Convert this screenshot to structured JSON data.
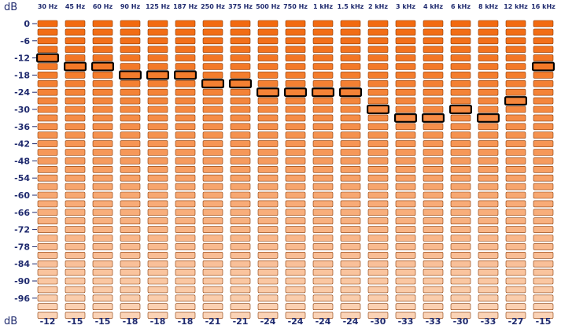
{
  "analyzer": {
    "top_unit": "dB",
    "bottom_unit": "dB"
  },
  "chart_data": {
    "type": "bar",
    "categories": [
      "30 Hz",
      "45 Hz",
      "60 Hz",
      "90 Hz",
      "125 Hz",
      "187 Hz",
      "250 Hz",
      "375 Hz",
      "500 Hz",
      "750 Hz",
      "1 kHz",
      "1.5 kHz",
      "2 kHz",
      "3 kHz",
      "4 kHz",
      "6 kHz",
      "8 kHz",
      "12 kHz",
      "16 kHz"
    ],
    "peak_values": [
      -12,
      -15,
      -15,
      -18,
      -18,
      -18,
      -21,
      -21,
      -24,
      -24,
      -24,
      -24,
      -30,
      -33,
      -33,
      -30,
      -33,
      -27,
      -15
    ],
    "peak_labels": [
      "-12",
      "-15",
      "-15",
      "-18",
      "-18",
      "-18",
      "-21",
      "-21",
      "-24",
      "-24",
      "-24",
      "-24",
      "-30",
      "-33",
      "-33",
      "-30",
      "-33",
      "-27",
      "-15"
    ],
    "y_ticks": [
      0,
      -6,
      -12,
      -18,
      -24,
      -30,
      -36,
      -42,
      -48,
      -54,
      -60,
      -66,
      -72,
      -78,
      -84,
      -90,
      -96
    ],
    "y_tick_labels": [
      "0",
      "-6",
      "-12",
      "-18",
      "-24",
      "-30",
      "-36",
      "-42",
      "-48",
      "-54",
      "-60",
      "-66",
      "-72",
      "-78",
      "-84",
      "-90",
      "-96"
    ],
    "ylim": [
      -102,
      0
    ],
    "segment_step_db": 3,
    "colors": {
      "segment_top": "#f26a10",
      "segment_bottom": "#fbd3b6",
      "segment_border": "#8a3a06",
      "peak_outline": "#000000",
      "axis_text": "#1f2a6e"
    }
  }
}
